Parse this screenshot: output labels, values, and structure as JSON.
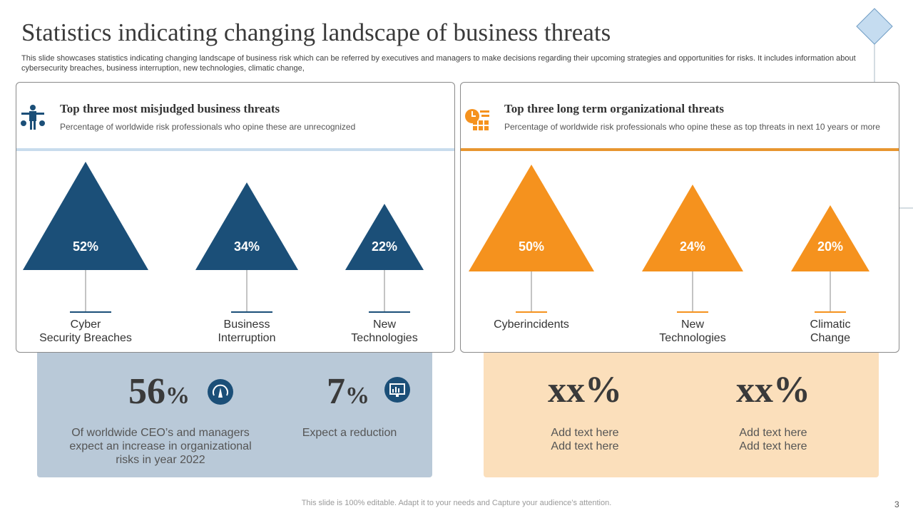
{
  "title": "Statistics indicating changing landscape of business threats",
  "description": "This slide showcases statistics indicating changing landscape of business risk which can be referred by executives and managers to make decisions regarding their upcoming strategies and opportunities for risks. It includes information about cybersecurity breaches, business interruption, new technologies, climatic change,",
  "colors": {
    "blue": "#1b4f78",
    "orange": "#f5921e",
    "blue_box": "#b9c9d8",
    "orange_box": "#fbdfbb"
  },
  "left_panel": {
    "icon": "balance-person-icon",
    "title": "Top three most misjudged business threats",
    "subtitle": "Percentage of worldwide  risk professionals  who opine these are unrecognized",
    "items": [
      {
        "value": "52%",
        "pct": 52,
        "label1": "Cyber",
        "label2": "Security Breaches"
      },
      {
        "value": "34%",
        "pct": 34,
        "label1": "Business",
        "label2": "Interruption"
      },
      {
        "value": "22%",
        "pct": 22,
        "label1": "New",
        "label2": "Technologies"
      }
    ]
  },
  "right_panel": {
    "icon": "clock-calendar-icon",
    "title": "Top three long term organizational threats",
    "subtitle": "Percentage of worldwide  risk professionals  who opine these as top threats in next 10 years or more",
    "items": [
      {
        "value": "50%",
        "pct": 50,
        "label1": "Cyberincidents",
        "label2": ""
      },
      {
        "value": "24%",
        "pct": 24,
        "label1": "New",
        "label2": "Technologies"
      },
      {
        "value": "20%",
        "pct": 20,
        "label1": "Climatic",
        "label2": "Change"
      }
    ]
  },
  "blue_box": [
    {
      "num": "56",
      "unit": "%",
      "icon": "gauge-icon",
      "text": "Of worldwide  CEO’s and managers expect an increase in organizational risks in year 2022"
    },
    {
      "num": "7",
      "unit": "%",
      "icon": "chart-monitor-icon",
      "text": "Expect a reduction"
    }
  ],
  "orange_box": [
    {
      "num": "xx%",
      "line1": "Add text here",
      "line2": "Add text here"
    },
    {
      "num": "xx%",
      "line1": "Add text here",
      "line2": "Add text here"
    }
  ],
  "footer": "This slide is 100% editable. Adapt it to your needs and Capture your audience’s attention.",
  "page_number": "3"
}
